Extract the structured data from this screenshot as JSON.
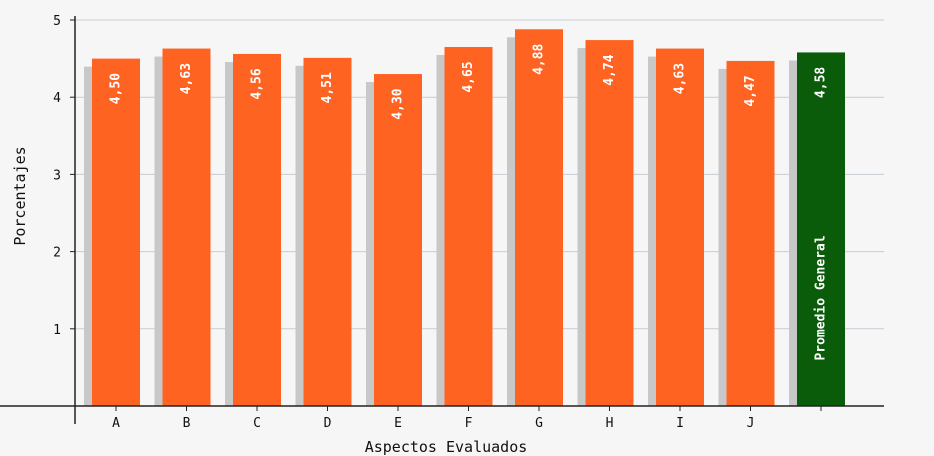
{
  "chart_data": {
    "type": "bar",
    "title": "",
    "xlabel": "Aspectos Evaluados",
    "ylabel": "Porcentajes",
    "ylim": [
      0,
      5
    ],
    "yticks": [
      1,
      2,
      3,
      4,
      5
    ],
    "grid": true,
    "categories": [
      "A",
      "B",
      "C",
      "D",
      "E",
      "F",
      "G",
      "H",
      "I",
      "J",
      ""
    ],
    "values": [
      4.5,
      4.63,
      4.56,
      4.51,
      4.3,
      4.65,
      4.88,
      4.74,
      4.63,
      4.47,
      4.58
    ],
    "value_labels": [
      "4,50",
      "4,63",
      "4,56",
      "4,51",
      "4,30",
      "4,65",
      "4,88",
      "4,74",
      "4,63",
      "4,47",
      "4,58"
    ],
    "summary_bar": {
      "label": "Promedio General",
      "value": 4.58,
      "value_label": "4,58"
    },
    "colors": {
      "bar": "#ff6322",
      "summary_bar": "#0a5c0a",
      "shadow": "#c8c8c8",
      "grid": "#c7ccd4",
      "axis": "#222222",
      "background": "#f6f6f6"
    }
  }
}
